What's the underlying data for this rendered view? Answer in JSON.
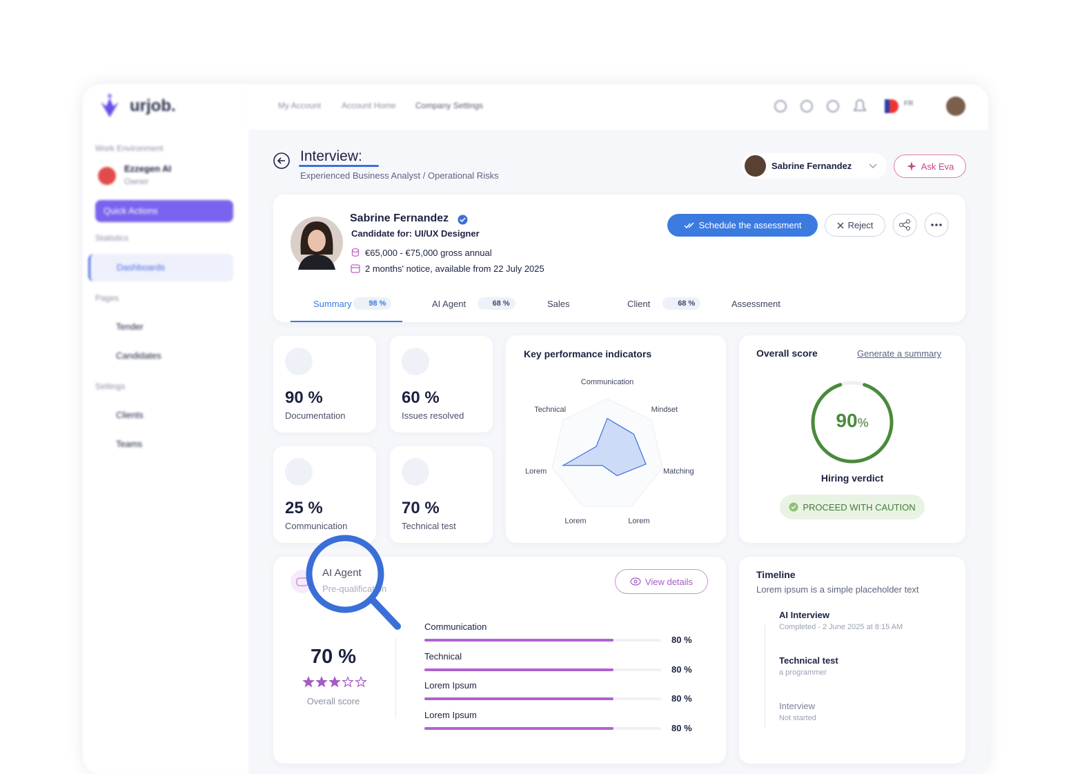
{
  "sidebar": {
    "logo": "urjob.",
    "work_environment": "Work Environment",
    "org_name": "Ezzegen AI",
    "org_role": "Owner",
    "quick_actions": "Quick Actions",
    "statistics": "Statistics",
    "dashboards": "Dashboards",
    "pages": "Pages",
    "tender": "Tender",
    "candidates": "Candidates",
    "settings": "Settings",
    "clients": "Clients",
    "teams": "Teams"
  },
  "topbar": {
    "breadcrumb": [
      "My Account",
      "Account Home",
      "Company Settings"
    ],
    "language": "FR"
  },
  "header": {
    "title": "Interview:",
    "subtitle": "Experienced Business Analyst / Operational Risks",
    "user_name": "Sabrine Fernandez",
    "ask_button": "Ask Eva"
  },
  "candidate": {
    "name": "Sabrine Fernandez",
    "role": "Candidate for: UI/UX Designer",
    "salary": "€65,000 - €75,000 gross annual",
    "notice": "2 months' notice, available from 22 July 2025",
    "schedule_button": "Schedule the assessment",
    "reject_button": "Reject"
  },
  "tabs": [
    {
      "label": "Summary",
      "badge": "98 %"
    },
    {
      "label": "AI Agent",
      "badge": "68 %"
    },
    {
      "label": "Sales"
    },
    {
      "label": "Client",
      "badge": "68 %"
    },
    {
      "label": "Assessment"
    }
  ],
  "stats": [
    {
      "value": "90 %",
      "label": "Documentation"
    },
    {
      "value": "60 %",
      "label": "Issues resolved"
    },
    {
      "value": "25 %",
      "label": "Communication"
    },
    {
      "value": "70 %",
      "label": "Technical test"
    }
  ],
  "kpi": {
    "title": "Key performance indicators",
    "axes": [
      "Communication",
      "Mindset",
      "Matching",
      "Lorem",
      "Lorem",
      "Lorem",
      "Technical"
    ],
    "values": [
      65,
      60,
      70,
      40,
      20,
      80,
      25
    ]
  },
  "overall": {
    "title": "Overall score",
    "link": "Generate a summary",
    "score": 90,
    "unit": "%",
    "verdict_title": "Hiring verdict",
    "verdict": "PROCEED WITH CAUTION"
  },
  "ai_agent": {
    "title": "AI Agent",
    "subtitle": "Pre-qualification",
    "button": "View details",
    "score": "70 %",
    "rating": 3,
    "rating_max": 5,
    "score_label": "Overall score",
    "skills": [
      {
        "name": "Communication",
        "value": 80,
        "value_label": "80 %"
      },
      {
        "name": "Technical",
        "value": 80,
        "value_label": "80 %"
      },
      {
        "name": "Lorem Ipsum",
        "value": 80,
        "value_label": "80 %"
      },
      {
        "name": "Lorem Ipsum",
        "value": 80,
        "value_label": "80 %"
      }
    ]
  },
  "timeline": {
    "title": "Timeline",
    "subtitle": "Lorem ipsum is a simple placeholder text",
    "items": [
      {
        "title": "AI Interview",
        "detail": "Completed - 2 June 2025 at 8:15 AM"
      },
      {
        "title": "Technical test",
        "detail": "a programmer"
      },
      {
        "title": "Interview",
        "detail": "Not started"
      }
    ]
  }
}
